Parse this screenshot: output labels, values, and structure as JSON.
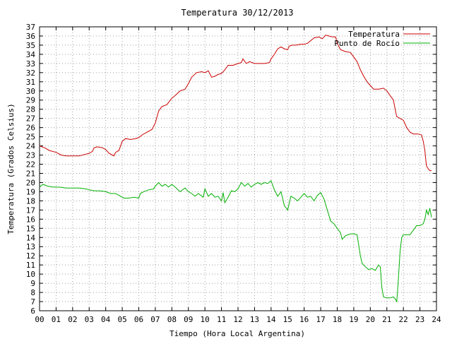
{
  "chart_data": {
    "type": "line",
    "title": "Temperatura 30/12/2013",
    "xlabel": "Tiempo (Hora Local Argentina)",
    "ylabel": "Temperatura (Grados Celsius)",
    "xlim": [
      0,
      24
    ],
    "ylim": [
      6,
      37
    ],
    "x_ticks": [
      "00",
      "01",
      "02",
      "03",
      "04",
      "05",
      "06",
      "07",
      "08",
      "09",
      "10",
      "11",
      "12",
      "13",
      "14",
      "15",
      "16",
      "17",
      "18",
      "19",
      "20",
      "21",
      "22",
      "23",
      "24"
    ],
    "y_ticks": [
      6,
      7,
      8,
      9,
      10,
      11,
      12,
      13,
      14,
      15,
      16,
      17,
      18,
      19,
      20,
      21,
      22,
      23,
      24,
      25,
      26,
      27,
      28,
      29,
      30,
      31,
      32,
      33,
      34,
      35,
      36,
      37
    ],
    "grid": true,
    "legend_position": "top-right",
    "series": [
      {
        "name": "Temperatura",
        "color": "#cc0000",
        "points": [
          [
            0,
            24
          ],
          [
            0.3,
            23.8
          ],
          [
            0.6,
            23.5
          ],
          [
            1.0,
            23.3
          ],
          [
            1.3,
            23.0
          ],
          [
            1.6,
            22.9
          ],
          [
            2.0,
            22.9
          ],
          [
            2.4,
            22.9
          ],
          [
            2.6,
            23.0
          ],
          [
            2.8,
            23.1
          ],
          [
            3.0,
            23.2
          ],
          [
            3.2,
            23.4
          ],
          [
            3.3,
            23.8
          ],
          [
            3.5,
            23.9
          ],
          [
            3.8,
            23.8
          ],
          [
            4.0,
            23.6
          ],
          [
            4.2,
            23.2
          ],
          [
            4.4,
            23.0
          ],
          [
            4.5,
            22.9
          ],
          [
            4.6,
            23.3
          ],
          [
            4.8,
            23.5
          ],
          [
            5.0,
            24.5
          ],
          [
            5.2,
            24.8
          ],
          [
            5.5,
            24.7
          ],
          [
            5.8,
            24.8
          ],
          [
            6.0,
            24.9
          ],
          [
            6.2,
            25.2
          ],
          [
            6.5,
            25.5
          ],
          [
            6.8,
            25.8
          ],
          [
            7.0,
            26.5
          ],
          [
            7.2,
            27.8
          ],
          [
            7.4,
            28.3
          ],
          [
            7.7,
            28.5
          ],
          [
            8.0,
            29.2
          ],
          [
            8.2,
            29.5
          ],
          [
            8.5,
            30.0
          ],
          [
            8.8,
            30.2
          ],
          [
            9.0,
            30.8
          ],
          [
            9.2,
            31.5
          ],
          [
            9.5,
            32.0
          ],
          [
            9.8,
            32.1
          ],
          [
            10.0,
            32.0
          ],
          [
            10.2,
            32.2
          ],
          [
            10.4,
            31.5
          ],
          [
            10.6,
            31.6
          ],
          [
            10.8,
            31.8
          ],
          [
            11.0,
            31.9
          ],
          [
            11.2,
            32.3
          ],
          [
            11.4,
            32.8
          ],
          [
            11.7,
            32.8
          ],
          [
            12.0,
            33.0
          ],
          [
            12.2,
            33.1
          ],
          [
            12.3,
            33.5
          ],
          [
            12.5,
            33.0
          ],
          [
            12.7,
            33.2
          ],
          [
            13.0,
            33.0
          ],
          [
            13.3,
            33.0
          ],
          [
            13.6,
            33.0
          ],
          [
            13.9,
            33.1
          ],
          [
            14.0,
            33.5
          ],
          [
            14.2,
            34.0
          ],
          [
            14.4,
            34.6
          ],
          [
            14.6,
            34.8
          ],
          [
            14.8,
            34.6
          ],
          [
            15.0,
            34.5
          ],
          [
            15.1,
            34.9
          ],
          [
            15.3,
            35.0
          ],
          [
            15.5,
            35.0
          ],
          [
            15.8,
            35.1
          ],
          [
            16.0,
            35.1
          ],
          [
            16.2,
            35.2
          ],
          [
            16.4,
            35.5
          ],
          [
            16.6,
            35.8
          ],
          [
            16.9,
            35.9
          ],
          [
            17.1,
            35.7
          ],
          [
            17.3,
            36.1
          ],
          [
            17.5,
            36.0
          ],
          [
            17.7,
            35.9
          ],
          [
            17.9,
            35.9
          ],
          [
            18.0,
            35.2
          ],
          [
            18.2,
            34.5
          ],
          [
            18.5,
            34.3
          ],
          [
            18.8,
            34.2
          ],
          [
            19.0,
            33.7
          ],
          [
            19.2,
            33.2
          ],
          [
            19.4,
            32.3
          ],
          [
            19.6,
            31.6
          ],
          [
            19.8,
            31.0
          ],
          [
            20.0,
            30.6
          ],
          [
            20.2,
            30.2
          ],
          [
            20.5,
            30.2
          ],
          [
            20.8,
            30.3
          ],
          [
            21.0,
            30.0
          ],
          [
            21.2,
            29.5
          ],
          [
            21.4,
            29.0
          ],
          [
            21.5,
            28.0
          ],
          [
            21.6,
            27.2
          ],
          [
            21.8,
            27.0
          ],
          [
            22.0,
            26.8
          ],
          [
            22.2,
            26.0
          ],
          [
            22.4,
            25.5
          ],
          [
            22.6,
            25.3
          ],
          [
            22.9,
            25.3
          ],
          [
            23.1,
            25.2
          ],
          [
            23.2,
            24.5
          ],
          [
            23.3,
            23.5
          ],
          [
            23.35,
            22.5
          ],
          [
            23.4,
            21.8
          ],
          [
            23.5,
            21.5
          ],
          [
            23.6,
            21.3
          ],
          [
            23.7,
            21.3
          ]
        ]
      },
      {
        "name": "Punto de Rocío",
        "color": "#00b000",
        "points": [
          [
            0,
            19.5
          ],
          [
            0.2,
            19.8
          ],
          [
            0.5,
            19.6
          ],
          [
            0.8,
            19.5
          ],
          [
            1.2,
            19.5
          ],
          [
            1.6,
            19.4
          ],
          [
            2.0,
            19.4
          ],
          [
            2.4,
            19.4
          ],
          [
            2.8,
            19.3
          ],
          [
            3.0,
            19.2
          ],
          [
            3.3,
            19.1
          ],
          [
            3.6,
            19.1
          ],
          [
            4.0,
            19.0
          ],
          [
            4.3,
            18.8
          ],
          [
            4.6,
            18.8
          ],
          [
            4.9,
            18.5
          ],
          [
            5.1,
            18.3
          ],
          [
            5.4,
            18.3
          ],
          [
            5.7,
            18.4
          ],
          [
            6.0,
            18.3
          ],
          [
            6.1,
            18.8
          ],
          [
            6.3,
            19.0
          ],
          [
            6.6,
            19.2
          ],
          [
            6.9,
            19.3
          ],
          [
            7.0,
            19.6
          ],
          [
            7.2,
            20.0
          ],
          [
            7.4,
            19.6
          ],
          [
            7.6,
            19.8
          ],
          [
            7.8,
            19.5
          ],
          [
            8.0,
            19.8
          ],
          [
            8.2,
            19.5
          ],
          [
            8.5,
            19.0
          ],
          [
            8.8,
            19.4
          ],
          [
            9.0,
            19.0
          ],
          [
            9.2,
            18.8
          ],
          [
            9.4,
            18.5
          ],
          [
            9.6,
            18.8
          ],
          [
            9.9,
            18.4
          ],
          [
            10.0,
            19.3
          ],
          [
            10.2,
            18.5
          ],
          [
            10.4,
            18.8
          ],
          [
            10.6,
            18.4
          ],
          [
            10.8,
            18.5
          ],
          [
            11.0,
            18.0
          ],
          [
            11.1,
            18.9
          ],
          [
            11.2,
            17.8
          ],
          [
            11.4,
            18.4
          ],
          [
            11.6,
            19.1
          ],
          [
            11.8,
            19.0
          ],
          [
            12.0,
            19.3
          ],
          [
            12.2,
            20.0
          ],
          [
            12.4,
            19.6
          ],
          [
            12.6,
            19.9
          ],
          [
            12.8,
            19.5
          ],
          [
            13.0,
            19.8
          ],
          [
            13.2,
            20.0
          ],
          [
            13.4,
            19.8
          ],
          [
            13.6,
            20.0
          ],
          [
            13.8,
            19.9
          ],
          [
            14.0,
            20.2
          ],
          [
            14.2,
            19.2
          ],
          [
            14.4,
            18.5
          ],
          [
            14.6,
            19.0
          ],
          [
            14.8,
            17.5
          ],
          [
            15.0,
            17.0
          ],
          [
            15.2,
            18.5
          ],
          [
            15.4,
            18.3
          ],
          [
            15.6,
            18.0
          ],
          [
            15.8,
            18.4
          ],
          [
            16.0,
            18.8
          ],
          [
            16.2,
            18.4
          ],
          [
            16.4,
            18.5
          ],
          [
            16.6,
            18.0
          ],
          [
            16.8,
            18.6
          ],
          [
            17.0,
            18.9
          ],
          [
            17.2,
            18.2
          ],
          [
            17.4,
            17.0
          ],
          [
            17.6,
            15.8
          ],
          [
            17.8,
            15.5
          ],
          [
            18.0,
            15.0
          ],
          [
            18.2,
            14.5
          ],
          [
            18.3,
            13.8
          ],
          [
            18.5,
            14.2
          ],
          [
            18.8,
            14.4
          ],
          [
            19.0,
            14.4
          ],
          [
            19.2,
            14.3
          ],
          [
            19.4,
            12.0
          ],
          [
            19.5,
            11.2
          ],
          [
            19.7,
            10.8
          ],
          [
            19.9,
            10.5
          ],
          [
            20.1,
            10.6
          ],
          [
            20.3,
            10.4
          ],
          [
            20.5,
            11.0
          ],
          [
            20.6,
            10.8
          ],
          [
            20.7,
            8.5
          ],
          [
            20.8,
            7.5
          ],
          [
            21.0,
            7.4
          ],
          [
            21.2,
            7.4
          ],
          [
            21.4,
            7.5
          ],
          [
            21.5,
            7.3
          ],
          [
            21.6,
            7.0
          ],
          [
            21.7,
            9.5
          ],
          [
            21.8,
            12.5
          ],
          [
            21.9,
            14.0
          ],
          [
            22.0,
            14.3
          ],
          [
            22.2,
            14.3
          ],
          [
            22.4,
            14.3
          ],
          [
            22.6,
            14.8
          ],
          [
            22.8,
            15.3
          ],
          [
            23.0,
            15.3
          ],
          [
            23.2,
            15.5
          ],
          [
            23.3,
            16.0
          ],
          [
            23.4,
            17.0
          ],
          [
            23.5,
            16.5
          ],
          [
            23.6,
            17.2
          ],
          [
            23.7,
            16.2
          ]
        ]
      }
    ]
  }
}
